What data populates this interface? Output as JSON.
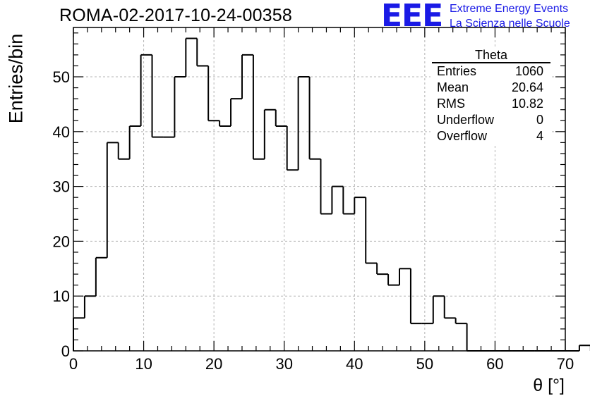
{
  "title": "ROMA-02-2017-10-24-00358",
  "logo": {
    "mark": "EEE",
    "line1": "Extreme Energy Events",
    "line2": "La Scienza nelle Scuole"
  },
  "stats": {
    "name": "Theta",
    "rows": [
      {
        "label": "Entries",
        "value": "1060"
      },
      {
        "label": "Mean",
        "value": "20.64"
      },
      {
        "label": "RMS",
        "value": "10.82"
      },
      {
        "label": "Underflow",
        "value": "0"
      },
      {
        "label": "Overflow",
        "value": "4"
      }
    ]
  },
  "chart_data": {
    "type": "histogram",
    "title": "ROMA-02-2017-10-24-00358",
    "xlabel": "θ [°]",
    "ylabel": "Entries/bin",
    "xlim": [
      0,
      70
    ],
    "ylim": [
      0,
      59
    ],
    "bin_width": 1.6,
    "bins_start": 0,
    "values": [
      6,
      10,
      17,
      38,
      35,
      41,
      54,
      39,
      39,
      50,
      57,
      52,
      42,
      41,
      46,
      54,
      35,
      44,
      41,
      33,
      50,
      35,
      25,
      30,
      25,
      28,
      16,
      14,
      12,
      15,
      5,
      5,
      10,
      6,
      5,
      0,
      0,
      0,
      0,
      0,
      0,
      0,
      0,
      0,
      0,
      1,
      0,
      0,
      0,
      0
    ],
    "xticks": [
      0,
      10,
      20,
      30,
      40,
      50,
      60,
      70
    ],
    "yticks": [
      0,
      10,
      20,
      30,
      40,
      50
    ],
    "grid": true,
    "colors": {
      "line": "#000000",
      "grid": "#b4b4b4",
      "logo": "#1a1ae6"
    }
  }
}
